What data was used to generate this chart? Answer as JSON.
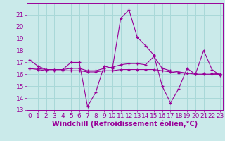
{
  "xlabel": "Windchill (Refroidissement éolien,°C)",
  "bg_color": "#caeaea",
  "grid_color": "#a8d8d8",
  "line_color": "#990099",
  "x": [
    0,
    1,
    2,
    3,
    4,
    5,
    6,
    7,
    8,
    9,
    10,
    11,
    12,
    13,
    14,
    15,
    16,
    17,
    18,
    19,
    20,
    21,
    22,
    23
  ],
  "line1": [
    17.2,
    16.7,
    16.4,
    16.4,
    16.4,
    17.0,
    17.0,
    13.3,
    14.5,
    16.7,
    16.5,
    20.7,
    21.4,
    19.1,
    18.4,
    17.6,
    15.0,
    13.6,
    14.8,
    16.5,
    16.0,
    18.0,
    16.4,
    15.9
  ],
  "line2": [
    16.5,
    16.5,
    16.4,
    16.4,
    16.4,
    16.5,
    16.5,
    16.3,
    16.3,
    16.5,
    16.6,
    16.8,
    16.9,
    16.9,
    16.8,
    17.5,
    16.5,
    16.3,
    16.2,
    16.1,
    16.1,
    16.1,
    16.1,
    16.0
  ],
  "line3": [
    16.5,
    16.4,
    16.3,
    16.3,
    16.3,
    16.3,
    16.3,
    16.2,
    16.2,
    16.3,
    16.3,
    16.4,
    16.4,
    16.4,
    16.4,
    16.4,
    16.3,
    16.2,
    16.1,
    16.1,
    16.0,
    16.0,
    16.0,
    16.0
  ],
  "ylim": [
    13,
    22
  ],
  "yticks": [
    13,
    14,
    15,
    16,
    17,
    18,
    19,
    20,
    21
  ],
  "xlim": [
    0,
    23
  ],
  "tick_fontsize": 6.5,
  "label_fontsize": 7
}
